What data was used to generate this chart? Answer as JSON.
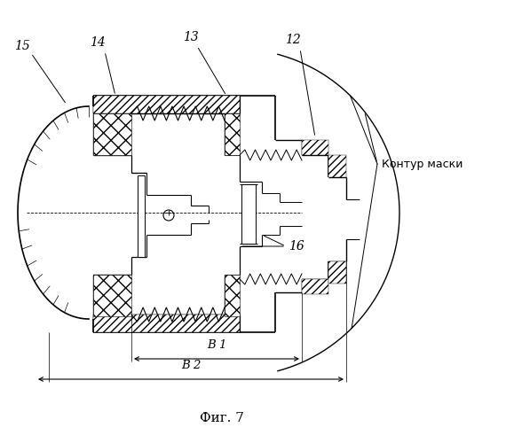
{
  "title": "Фиг. 7",
  "label_kontur": "Контур маски",
  "label_12": "12",
  "label_13": "13",
  "label_14": "14",
  "label_15": "15",
  "label_16": "16",
  "label_B1": "В 1",
  "label_B2": "В 2",
  "bg_color": "#ffffff",
  "line_color": "#000000",
  "fig_width": 5.7,
  "fig_height": 5.0,
  "dpi": 100
}
